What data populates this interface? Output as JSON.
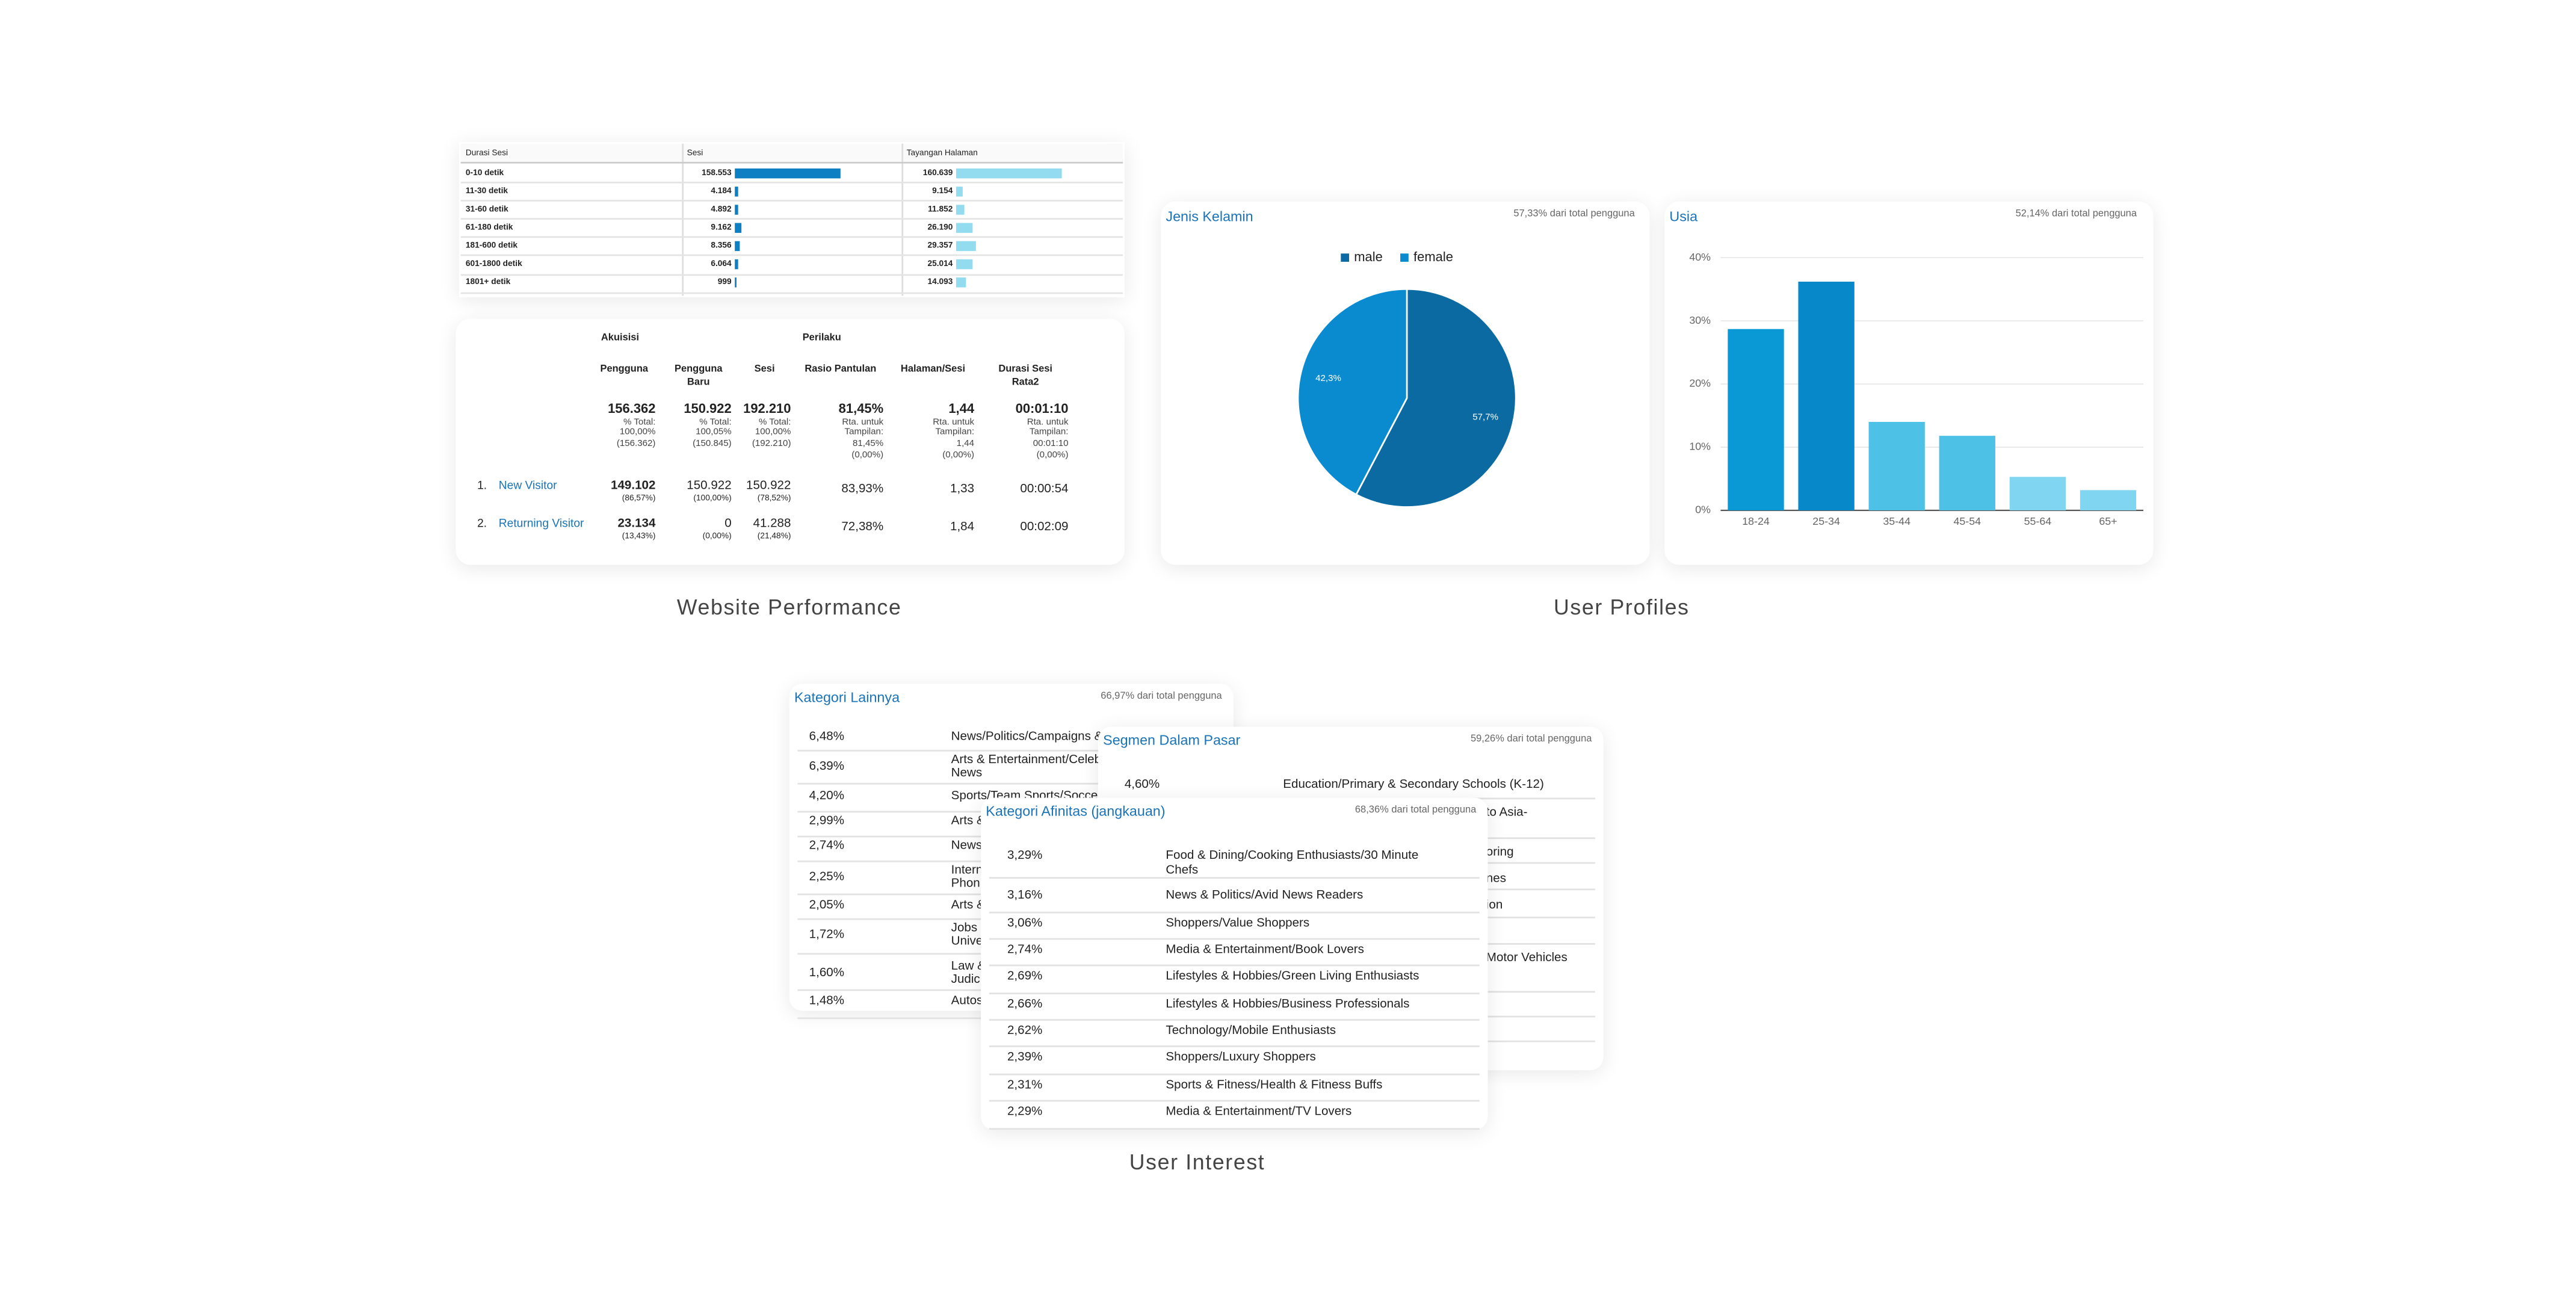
{
  "website_performance": {
    "caption": "Website Performance",
    "session_table": {
      "type": "bar",
      "header": "Durasi Sesi",
      "categories": [
        "0-10 detik",
        "11-30 detik",
        "31-60 detik",
        "61-180 detik",
        "181-600 detik",
        "601-1800 detik",
        "1801+ detik"
      ],
      "series": [
        {
          "name": "Sesi",
          "color": "#0f7fc4",
          "values": [
            158553,
            4184,
            4892,
            9162,
            8356,
            6064,
            999
          ],
          "value_labels": [
            "158.553",
            "4.184",
            "4.892",
            "9.162",
            "8.356",
            "6.064",
            "999"
          ]
        },
        {
          "name": "Tayangan Halaman",
          "color": "#93dcf0",
          "values": [
            160639,
            9154,
            11852,
            26190,
            29357,
            25014,
            14093
          ],
          "value_labels": [
            "160.639",
            "9.154",
            "11.852",
            "26.190",
            "29.357",
            "25.014",
            "14.093"
          ]
        }
      ]
    },
    "acquisition_table": {
      "groups": [
        "Akuisisi",
        "Perilaku"
      ],
      "columns": [
        "Pengguna",
        "Pengguna Baru",
        "Sesi",
        "Rasio Pantulan",
        "Halaman/Sesi",
        "Durasi Sesi Rata2"
      ],
      "totals": [
        [
          "156.362",
          "% Total:",
          "100,00%",
          "(156.362)"
        ],
        [
          "150.922",
          "% Total:",
          "100,05%",
          "(150.845)"
        ],
        [
          "192.210",
          "% Total:",
          "100,00%",
          "(192.210)"
        ],
        [
          "81,45%",
          "Rta. untuk",
          "Tampilan:",
          "81,45%",
          "(0,00%)"
        ],
        [
          "1,44",
          "Rta. untuk",
          "Tampilan:",
          "1,44",
          "(0,00%)"
        ],
        [
          "00:01:10",
          "Rta. untuk",
          "Tampilan:",
          "00:01:10",
          "(0,00%)"
        ]
      ],
      "rows": [
        {
          "index": "1.",
          "name": "New Visitor",
          "cells": [
            [
              "149.102",
              "(86,57%)"
            ],
            [
              "150.922",
              "(100,00%)"
            ],
            [
              "150.922",
              "(78,52%)"
            ],
            [
              "83,93%"
            ],
            [
              "1,33"
            ],
            [
              "00:00:54"
            ]
          ]
        },
        {
          "index": "2.",
          "name": "Returning Visitor",
          "cells": [
            [
              "23.134",
              "(13,43%)"
            ],
            [
              "0",
              "(0,00%)"
            ],
            [
              "41.288",
              "(21,48%)"
            ],
            [
              "72,38%"
            ],
            [
              "1,84"
            ],
            [
              "00:02:09"
            ]
          ]
        }
      ]
    }
  },
  "user_profiles": {
    "caption": "User Profiles",
    "gender_chart": {
      "type": "pie",
      "title": "Jenis Kelamin",
      "subtitle": "57,33% dari total pengguna",
      "categories": [
        "male",
        "female"
      ],
      "values": [
        57.7,
        42.3
      ],
      "value_labels": [
        "57,7%",
        "42,3%"
      ],
      "colors": [
        "#0b6aa2",
        "#0b8bcf"
      ],
      "legend": "top"
    },
    "age_chart": {
      "type": "bar",
      "title": "Usia",
      "subtitle": "52,14% dari total pengguna",
      "categories": [
        "18-24",
        "25-34",
        "35-44",
        "45-54",
        "55-64",
        "65+"
      ],
      "values": [
        28.7,
        36.2,
        14.0,
        11.8,
        5.3,
        3.2
      ],
      "colors": [
        "#0a99d5",
        "#0788c9",
        "#4ec1e7",
        "#4ec1e7",
        "#80d5f1",
        "#80d5f1"
      ],
      "ylim": [
        0,
        40
      ],
      "yticks": [
        {
          "value": 0,
          "label": "0%"
        },
        {
          "value": 10,
          "label": "10%"
        },
        {
          "value": 20,
          "label": "20%"
        },
        {
          "value": 30,
          "label": "30%"
        },
        {
          "value": 40,
          "label": "40%"
        }
      ],
      "grid": true
    }
  },
  "user_interest": {
    "caption": "User Interest",
    "cards": [
      {
        "title": "Kategori Lainnya",
        "subtitle": "66,97% dari total pengguna",
        "rows": [
          [
            "6,48%",
            "News/Politics/Campaigns &"
          ],
          [
            "6,39%",
            "Arts & Entertainment/Celeb",
            "News"
          ],
          [
            "4,20%",
            "Sports/Team Sports/Socce"
          ],
          [
            "2,99%",
            "Arts &"
          ],
          [
            "2,74%",
            "News"
          ],
          [
            "2,25%",
            "Intern",
            "Phon"
          ],
          [
            "2,05%",
            "Arts &"
          ],
          [
            "1,72%",
            "Jobs",
            "Unive"
          ],
          [
            "1,60%",
            "Law &",
            "Judic"
          ],
          [
            "1,48%",
            "Autos"
          ]
        ]
      },
      {
        "title": "Segmen Dalam Pasar",
        "subtitle": "59,26% dari total pengguna",
        "rows": [
          [
            "4,60%",
            "Education/Primary & Secondary Schools (K-12)"
          ]
        ],
        "fragments": [
          "to Asia-",
          "oring",
          "nes",
          "ion",
          "Motor Vehicles"
        ]
      },
      {
        "title": "Kategori Afinitas (jangkauan)",
        "subtitle": "68,36% dari total pengguna",
        "rows": [
          [
            "3,29%",
            "Food & Dining/Cooking Enthusiasts/30 Minute Chefs"
          ],
          [
            "3,16%",
            "News & Politics/Avid News Readers"
          ],
          [
            "3,06%",
            "Shoppers/Value Shoppers"
          ],
          [
            "2,74%",
            "Media & Entertainment/Book Lovers"
          ],
          [
            "2,69%",
            "Lifestyles & Hobbies/Green Living Enthusiasts"
          ],
          [
            "2,66%",
            "Lifestyles & Hobbies/Business Professionals"
          ],
          [
            "2,62%",
            "Technology/Mobile Enthusiasts"
          ],
          [
            "2,39%",
            "Shoppers/Luxury Shoppers"
          ],
          [
            "2,31%",
            "Sports & Fitness/Health & Fitness Buffs"
          ],
          [
            "2,29%",
            "Media & Entertainment/TV Lovers"
          ]
        ]
      }
    ]
  }
}
